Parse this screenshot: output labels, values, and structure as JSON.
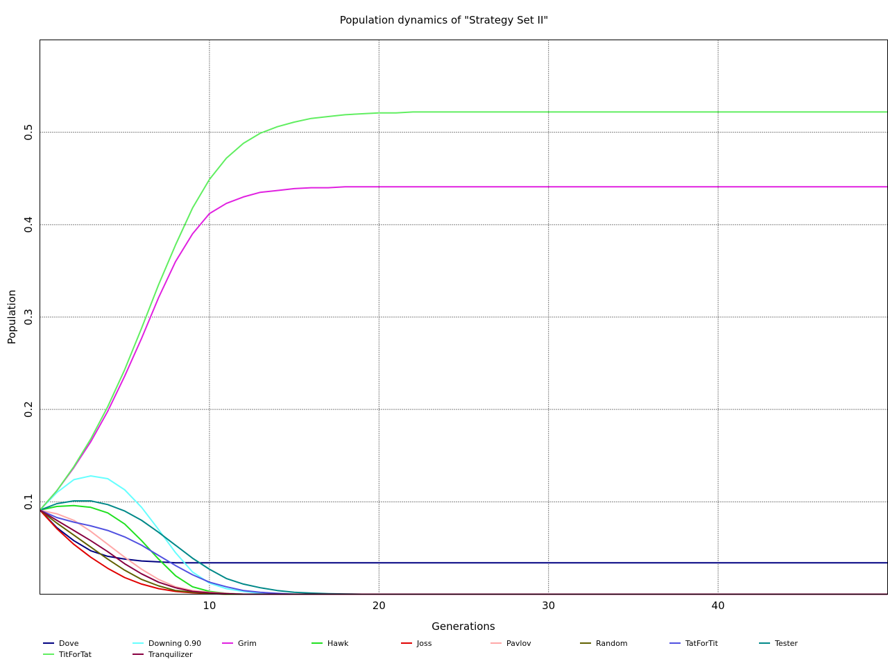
{
  "chart_data": {
    "type": "line",
    "title": "Population dynamics of \"Strategy Set II\"",
    "xlabel": "Generations",
    "ylabel": "Population",
    "xlim": [
      0,
      50
    ],
    "ylim": [
      0,
      0.6
    ],
    "x_ticks": [
      10,
      20,
      30,
      40
    ],
    "y_ticks": [
      0.1,
      0.2,
      0.3,
      0.4,
      0.5
    ],
    "grid": true,
    "legend_position": "bottom",
    "x": [
      0,
      1,
      2,
      3,
      4,
      5,
      6,
      7,
      8,
      9,
      10,
      11,
      12,
      13,
      14,
      15,
      16,
      17,
      18,
      19,
      20,
      21,
      22,
      23,
      24,
      25,
      26,
      27,
      28,
      29,
      30,
      31,
      32,
      33,
      34,
      35,
      36,
      37,
      38,
      39,
      40,
      41,
      42,
      43,
      44,
      45,
      46,
      47,
      48,
      49,
      50
    ],
    "series": [
      {
        "name": "Dove",
        "color": "#000080",
        "values": [
          0.091,
          0.072,
          0.058,
          0.047,
          0.041,
          0.038,
          0.036,
          0.035,
          0.034,
          0.034,
          0.034,
          0.034,
          0.034,
          0.034,
          0.034,
          0.034,
          0.034,
          0.034,
          0.034,
          0.034,
          0.034,
          0.034,
          0.034,
          0.034,
          0.034,
          0.034,
          0.034,
          0.034,
          0.034,
          0.034,
          0.034,
          0.034,
          0.034,
          0.034,
          0.034,
          0.034,
          0.034,
          0.034,
          0.034,
          0.034,
          0.034,
          0.034,
          0.034,
          0.034,
          0.034,
          0.034,
          0.034,
          0.034,
          0.034,
          0.034,
          0.034
        ]
      },
      {
        "name": "Downing 0.90",
        "color": "#66ffff",
        "values": [
          0.091,
          0.11,
          0.124,
          0.128,
          0.125,
          0.113,
          0.094,
          0.07,
          0.045,
          0.024,
          0.012,
          0.006,
          0.003,
          0.001,
          0.0005,
          0,
          0,
          0,
          0,
          0,
          0,
          0,
          0,
          0,
          0,
          0,
          0,
          0,
          0,
          0,
          0,
          0,
          0,
          0,
          0,
          0,
          0,
          0,
          0,
          0,
          0,
          0,
          0,
          0,
          0,
          0,
          0,
          0,
          0,
          0,
          0
        ]
      },
      {
        "name": "Grim",
        "color": "#e020e0",
        "values": [
          0.091,
          0.112,
          0.137,
          0.165,
          0.198,
          0.236,
          0.277,
          0.321,
          0.36,
          0.39,
          0.412,
          0.423,
          0.43,
          0.435,
          0.437,
          0.439,
          0.44,
          0.44,
          0.441,
          0.441,
          0.441,
          0.441,
          0.441,
          0.441,
          0.441,
          0.441,
          0.441,
          0.441,
          0.441,
          0.441,
          0.441,
          0.441,
          0.441,
          0.441,
          0.441,
          0.441,
          0.441,
          0.441,
          0.441,
          0.441,
          0.441,
          0.441,
          0.441,
          0.441,
          0.441,
          0.441,
          0.441,
          0.441,
          0.441,
          0.441,
          0.441
        ]
      },
      {
        "name": "Hawk",
        "color": "#20e020",
        "values": [
          0.091,
          0.095,
          0.096,
          0.094,
          0.088,
          0.076,
          0.058,
          0.038,
          0.02,
          0.008,
          0.003,
          0.001,
          0,
          0,
          0,
          0,
          0,
          0,
          0,
          0,
          0,
          0,
          0,
          0,
          0,
          0,
          0,
          0,
          0,
          0,
          0,
          0,
          0,
          0,
          0,
          0,
          0,
          0,
          0,
          0,
          0,
          0,
          0,
          0,
          0,
          0,
          0,
          0,
          0,
          0,
          0
        ]
      },
      {
        "name": "Joss",
        "color": "#e00000",
        "values": [
          0.091,
          0.071,
          0.054,
          0.04,
          0.028,
          0.018,
          0.011,
          0.006,
          0.003,
          0.0015,
          0.0007,
          0,
          0,
          0,
          0,
          0,
          0,
          0,
          0,
          0,
          0,
          0,
          0,
          0,
          0,
          0,
          0,
          0,
          0,
          0,
          0,
          0,
          0,
          0,
          0,
          0,
          0,
          0,
          0,
          0,
          0,
          0,
          0,
          0,
          0,
          0,
          0,
          0,
          0,
          0,
          0
        ]
      },
      {
        "name": "Pavlov",
        "color": "#ffa8a8",
        "values": [
          0.091,
          0.087,
          0.08,
          0.068,
          0.054,
          0.04,
          0.027,
          0.016,
          0.008,
          0.004,
          0.002,
          0.001,
          0,
          0,
          0,
          0,
          0,
          0,
          0,
          0,
          0,
          0,
          0,
          0,
          0,
          0,
          0,
          0,
          0,
          0,
          0,
          0,
          0,
          0,
          0,
          0,
          0,
          0,
          0,
          0,
          0,
          0,
          0,
          0,
          0,
          0,
          0,
          0,
          0,
          0,
          0
        ]
      },
      {
        "name": "Random",
        "color": "#606000",
        "values": [
          0.091,
          0.077,
          0.064,
          0.051,
          0.038,
          0.026,
          0.016,
          0.009,
          0.004,
          0.002,
          0.001,
          0,
          0,
          0,
          0,
          0,
          0,
          0,
          0,
          0,
          0,
          0,
          0,
          0,
          0,
          0,
          0,
          0,
          0,
          0,
          0,
          0,
          0,
          0,
          0,
          0,
          0,
          0,
          0,
          0,
          0,
          0,
          0,
          0,
          0,
          0,
          0,
          0,
          0,
          0,
          0
        ]
      },
      {
        "name": "TatForTit",
        "color": "#5050e0",
        "values": [
          0.091,
          0.083,
          0.078,
          0.074,
          0.069,
          0.062,
          0.053,
          0.042,
          0.031,
          0.021,
          0.013,
          0.008,
          0.004,
          0.002,
          0.001,
          0,
          0,
          0,
          0,
          0,
          0,
          0,
          0,
          0,
          0,
          0,
          0,
          0,
          0,
          0,
          0,
          0,
          0,
          0,
          0,
          0,
          0,
          0,
          0,
          0,
          0,
          0,
          0,
          0,
          0,
          0,
          0,
          0,
          0,
          0,
          0
        ]
      },
      {
        "name": "Tester",
        "color": "#008888",
        "values": [
          0.091,
          0.098,
          0.101,
          0.101,
          0.097,
          0.09,
          0.08,
          0.067,
          0.053,
          0.039,
          0.027,
          0.017,
          0.011,
          0.007,
          0.004,
          0.002,
          0.0012,
          0.0006,
          0.0003,
          0,
          0,
          0,
          0,
          0,
          0,
          0,
          0,
          0,
          0,
          0,
          0,
          0,
          0,
          0,
          0,
          0,
          0,
          0,
          0,
          0,
          0,
          0,
          0,
          0,
          0,
          0,
          0,
          0,
          0,
          0,
          0
        ]
      },
      {
        "name": "TitForTat",
        "color": "#60ee60",
        "values": [
          0.091,
          0.112,
          0.138,
          0.168,
          0.203,
          0.243,
          0.288,
          0.335,
          0.378,
          0.418,
          0.449,
          0.472,
          0.488,
          0.499,
          0.506,
          0.511,
          0.515,
          0.517,
          0.519,
          0.52,
          0.521,
          0.521,
          0.522,
          0.522,
          0.522,
          0.522,
          0.522,
          0.522,
          0.522,
          0.522,
          0.522,
          0.522,
          0.522,
          0.522,
          0.522,
          0.522,
          0.522,
          0.522,
          0.522,
          0.522,
          0.522,
          0.522,
          0.522,
          0.522,
          0.522,
          0.522,
          0.522,
          0.522,
          0.522,
          0.522,
          0.522
        ]
      },
      {
        "name": "Tranquilizer",
        "color": "#880040",
        "values": [
          0.091,
          0.08,
          0.069,
          0.058,
          0.046,
          0.033,
          0.022,
          0.013,
          0.007,
          0.003,
          0.0015,
          0.0006,
          0,
          0,
          0,
          0,
          0,
          0,
          0,
          0,
          0,
          0,
          0,
          0,
          0,
          0,
          0,
          0,
          0,
          0,
          0,
          0,
          0,
          0,
          0,
          0,
          0,
          0,
          0,
          0,
          0,
          0,
          0,
          0,
          0,
          0,
          0,
          0,
          0,
          0,
          0
        ]
      }
    ]
  }
}
